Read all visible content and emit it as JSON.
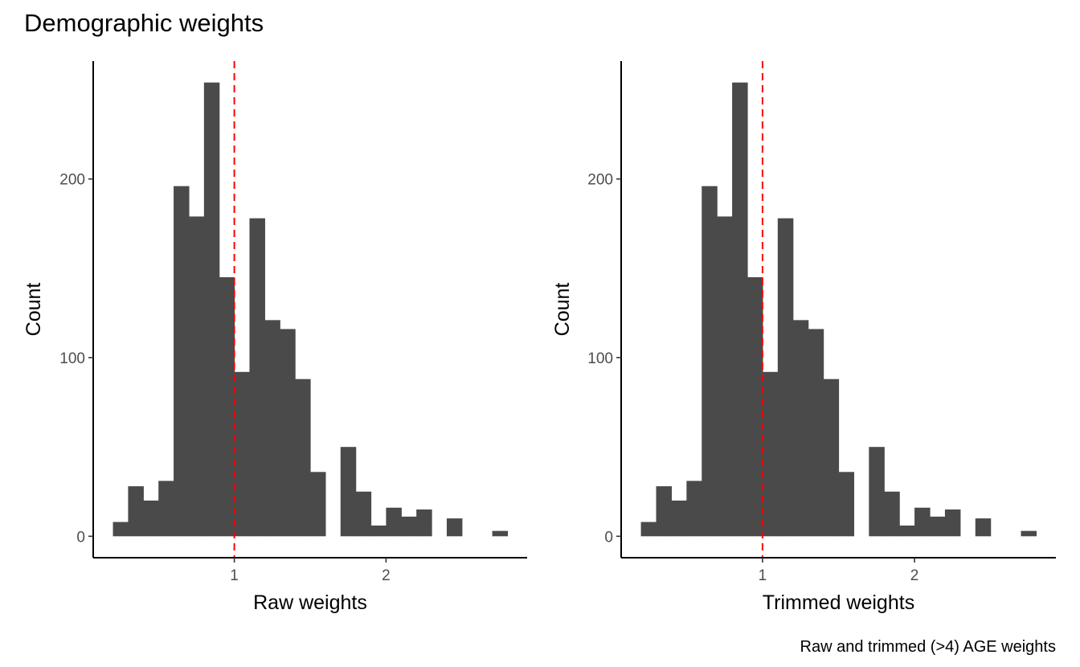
{
  "title": "Demographic weights",
  "caption": "Raw and trimmed (>4) AGE weights",
  "colors": {
    "bar": "#4a4a4a",
    "refline": "#ff0000"
  },
  "chart_data": [
    {
      "type": "histogram",
      "xlabel": "Raw weights",
      "ylabel": "Count",
      "xlim": [
        0.07,
        2.93
      ],
      "ylim": [
        -12,
        266
      ],
      "xticks": [
        1,
        2
      ],
      "yticks": [
        0,
        100,
        200
      ],
      "bin_width": 0.1,
      "bin_starts": [
        0.2,
        0.3,
        0.4,
        0.5,
        0.6,
        0.7,
        0.8,
        0.9,
        1.0,
        1.1,
        1.2,
        1.3,
        1.4,
        1.5,
        1.6,
        1.7,
        1.8,
        1.9,
        2.0,
        2.1,
        2.2,
        2.3,
        2.4,
        2.5,
        2.6,
        2.7
      ],
      "counts": [
        8,
        28,
        20,
        31,
        196,
        179,
        254,
        145,
        92,
        178,
        121,
        116,
        88,
        36,
        0,
        50,
        25,
        6,
        16,
        11,
        15,
        0,
        10,
        0,
        0,
        3
      ],
      "vline": 1,
      "grid": false
    },
    {
      "type": "histogram",
      "xlabel": "Trimmed weights",
      "ylabel": "Count",
      "xlim": [
        0.07,
        2.93
      ],
      "ylim": [
        -12,
        266
      ],
      "xticks": [
        1,
        2
      ],
      "yticks": [
        0,
        100,
        200
      ],
      "bin_width": 0.1,
      "bin_starts": [
        0.2,
        0.3,
        0.4,
        0.5,
        0.6,
        0.7,
        0.8,
        0.9,
        1.0,
        1.1,
        1.2,
        1.3,
        1.4,
        1.5,
        1.6,
        1.7,
        1.8,
        1.9,
        2.0,
        2.1,
        2.2,
        2.3,
        2.4,
        2.5,
        2.6,
        2.7
      ],
      "counts": [
        8,
        28,
        20,
        31,
        196,
        179,
        254,
        145,
        92,
        178,
        121,
        116,
        88,
        36,
        0,
        50,
        25,
        6,
        16,
        11,
        15,
        0,
        10,
        0,
        0,
        3
      ],
      "vline": 1,
      "grid": false
    }
  ]
}
